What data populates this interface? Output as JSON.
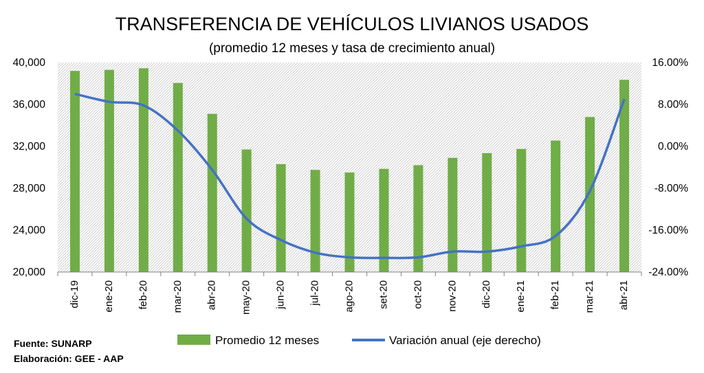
{
  "chart_data": {
    "type": "bar+line",
    "title": "TRANSFERENCIA DE VEHÍCULOS LIVIANOS USADOS",
    "subtitle": "(promedio 12 meses y tasa de crecimiento anual)",
    "categories": [
      "dic-19",
      "ene-20",
      "feb-20",
      "mar-20",
      "abr-20",
      "may-20",
      "jun-20",
      "jul-20",
      "ago-20",
      "set-20",
      "oct-20",
      "nov-20",
      "dic-20",
      "ene-21",
      "feb-21",
      "mar-21",
      "abr-21"
    ],
    "series": [
      {
        "name": "Promedio 12 meses",
        "type": "bar",
        "axis": "left",
        "color": "#70ad47",
        "values": [
          39200,
          39300,
          39450,
          38050,
          35100,
          31700,
          30300,
          29750,
          29500,
          29850,
          30200,
          30900,
          31350,
          31750,
          32550,
          34800,
          38350
        ]
      },
      {
        "name": "Variación anual (eje derecho)",
        "type": "line",
        "axis": "right",
        "color": "#4472c4",
        "values": [
          10.0,
          8.5,
          7.8,
          3.0,
          -4.5,
          -13.8,
          -17.9,
          -20.3,
          -21.2,
          -21.3,
          -21.2,
          -20.1,
          -20.1,
          -19.1,
          -17.1,
          -8.5,
          9.0
        ]
      }
    ],
    "y_left": {
      "ylim": [
        20000,
        40000
      ],
      "ticks": [
        "20,000",
        "24,000",
        "28,000",
        "32,000",
        "36,000",
        "40,000"
      ]
    },
    "y_right": {
      "ylim": [
        -24,
        16
      ],
      "ticks": [
        "-24.00%",
        "-16.00%",
        "-8.00%",
        "0.00%",
        "8.00%",
        "16.00%"
      ]
    },
    "grid": false,
    "legend": "bottom"
  },
  "footer": {
    "source": "Fuente: SUNARP",
    "prepared_by": "Elaboración: GEE - AAP"
  }
}
